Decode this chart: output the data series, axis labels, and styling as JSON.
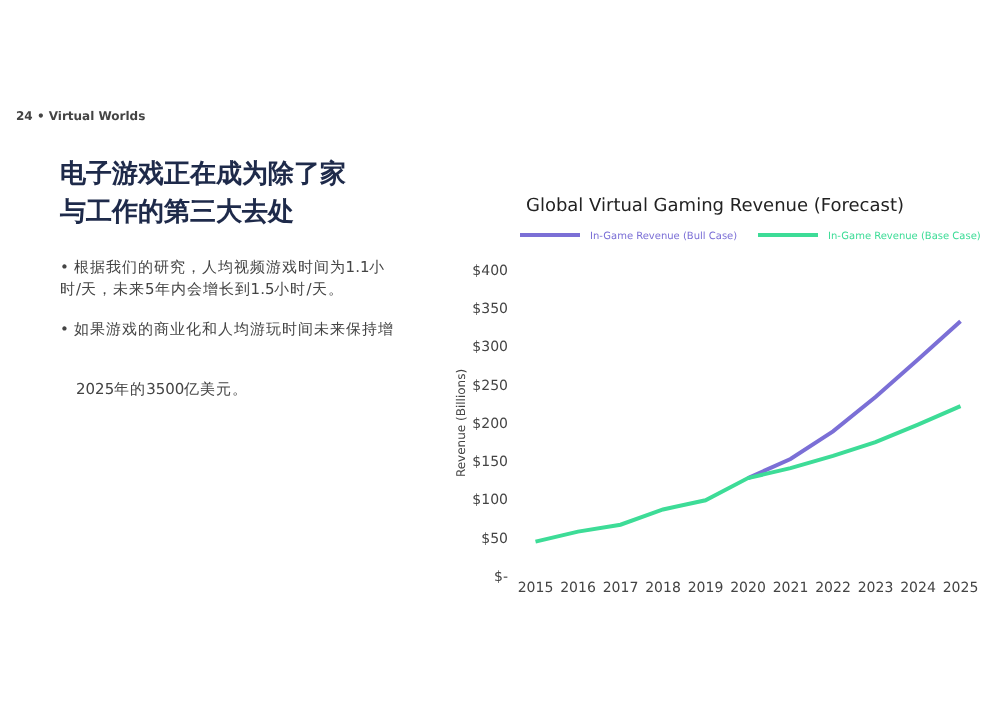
{
  "chart_data": {
    "type": "line",
    "title": "Global Virtual Gaming Revenue (Forecast)",
    "ylabel": "Revenue (Billions)",
    "annotations": [
      "24 •  Virtual Worlds",
      "电子游戏正在成为除了家与工作的第三大去处",
      "• 根据我们的研究，人均视频游戏时间为1.1小时/天，未来5年内会增长到1.5小时/天。",
      "• 如果游戏的商业化和人均游玩时间未来保持增",
      "2025年的3500亿美元。"
    ],
    "categories": [
      "2015",
      "2016",
      "2017",
      "2018",
      "2019",
      "2020",
      "2021",
      "2022",
      "2023",
      "2024",
      "2025"
    ],
    "series": [
      {
        "name": "In-Game Revenue (Bull Case)",
        "color": "#7b6fd6",
        "values": [
          null,
          null,
          null,
          null,
          null,
          128,
          153,
          189,
          234,
          283,
          333
        ]
      },
      {
        "name": "In-Game Revenue (Base Case)",
        "color": "#3ddc97",
        "values": [
          45,
          58,
          67,
          87,
          99,
          128,
          141,
          157,
          175,
          198,
          222
        ]
      }
    ],
    "ylim": [
      0,
      400
    ],
    "yticks": [
      {
        "value": 0,
        "label": "$-"
      },
      {
        "value": 50,
        "label": "$50"
      },
      {
        "value": 100,
        "label": "$100"
      },
      {
        "value": 150,
        "label": "$150"
      },
      {
        "value": 200,
        "label": "$200"
      },
      {
        "value": 250,
        "label": "$250"
      },
      {
        "value": 300,
        "label": "$300"
      },
      {
        "value": 350,
        "label": "$350"
      },
      {
        "value": 400,
        "label": "$400"
      }
    ],
    "grid": false,
    "legend": "top",
    "marker": "none",
    "line_style": "solid"
  }
}
